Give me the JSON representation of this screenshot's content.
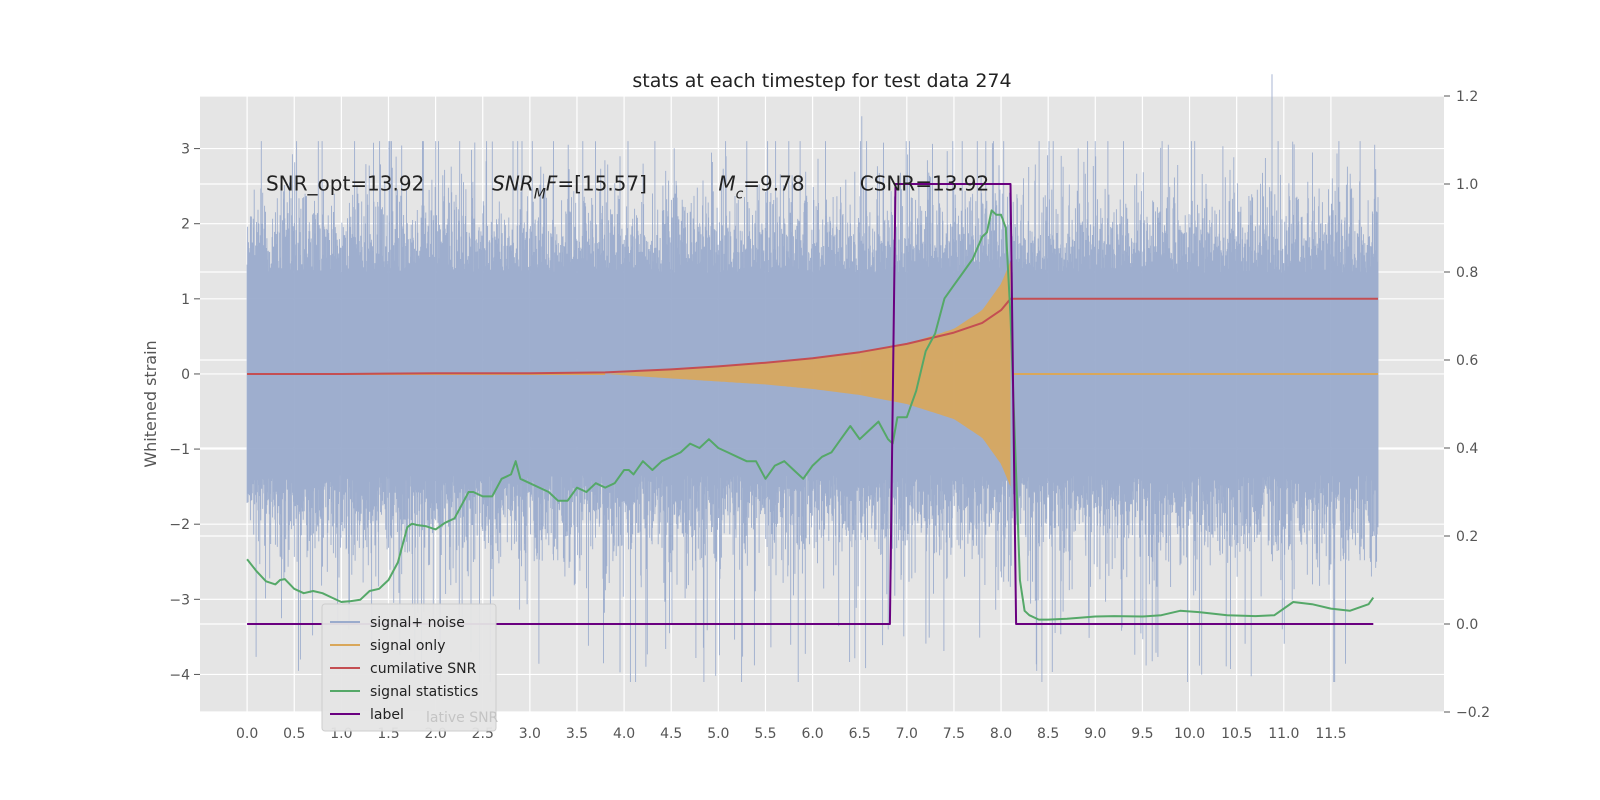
{
  "chart_data": {
    "type": "line",
    "title": "stats at each timestep for test data 274",
    "ylabel": "Whitened strain",
    "xlim": [
      -0.5,
      12.7
    ],
    "ylim": [
      -4.5,
      3.7
    ],
    "y2lim": [
      -0.2,
      1.2
    ],
    "grid": true,
    "x_ticks": [
      "0.0",
      "0.5",
      "1.0",
      "1.5",
      "2.0",
      "2.5",
      "3.0",
      "3.5",
      "4.0",
      "4.5",
      "5.0",
      "5.5",
      "6.0",
      "6.5",
      "7.0",
      "7.5",
      "8.0",
      "8.5",
      "9.0",
      "9.5",
      "10.0",
      "10.5",
      "11.0",
      "11.5"
    ],
    "y_ticks": [
      "3",
      "2",
      "1",
      "0",
      "−1",
      "−2",
      "−3",
      "−4"
    ],
    "y2_ticks": [
      "1.2",
      "1.0",
      "0.8",
      "0.6",
      "0.4",
      "0.2",
      "0.0",
      "−0.2"
    ],
    "annotations": [
      {
        "pre": "SNR_opt=13.92",
        "sub": "",
        "post": "",
        "x": 0.2
      },
      {
        "pre": "SNR",
        "sub": "M",
        "post": "F=[15.57]",
        "x": 2.6
      },
      {
        "pre": "M",
        "sub": "c",
        "post": "=9.78",
        "x": 5.0
      },
      {
        "pre": "CSNR=13.92",
        "sub": "",
        "post": "",
        "x": 6.5
      }
    ],
    "annotation_y": 2.55,
    "series": [
      {
        "name": "signal+ noise",
        "color": "#9aabcc",
        "axis": "left",
        "kind": "noise",
        "x_range": [
          0.0,
          12.0
        ],
        "envelope": {
          "core": 1.35,
          "peak_high": 3.1,
          "peak_low": -4.1
        },
        "notes_visible": "dense noise trace spanning the full time range"
      },
      {
        "name": "signal only",
        "color": "#d9a75a",
        "axis": "left",
        "kind": "chirp",
        "x": [
          3.8,
          4.5,
          5.0,
          5.5,
          6.0,
          6.5,
          7.0,
          7.5,
          7.8,
          8.0,
          8.1
        ],
        "amplitude": [
          0.0,
          0.06,
          0.1,
          0.14,
          0.2,
          0.28,
          0.4,
          0.6,
          0.85,
          1.2,
          1.5
        ],
        "after": 0.0
      },
      {
        "name": "cumilative SNR",
        "color": "#c44e52",
        "axis": "left",
        "x": [
          0.0,
          1.0,
          2.0,
          3.0,
          3.8,
          4.5,
          5.0,
          5.5,
          6.0,
          6.5,
          7.0,
          7.5,
          7.8,
          8.0,
          8.1,
          8.15,
          12.0
        ],
        "y": [
          0.0,
          0.0,
          0.01,
          0.01,
          0.02,
          0.06,
          0.1,
          0.15,
          0.21,
          0.29,
          0.4,
          0.55,
          0.68,
          0.85,
          1.0,
          1.0,
          1.0
        ]
      },
      {
        "name": "signal statistics",
        "color": "#55a868",
        "axis": "right",
        "x": [
          0.0,
          0.1,
          0.2,
          0.3,
          0.35,
          0.4,
          0.5,
          0.6,
          0.7,
          0.8,
          0.9,
          1.0,
          1.1,
          1.2,
          1.3,
          1.4,
          1.5,
          1.6,
          1.65,
          1.7,
          1.75,
          1.8,
          1.9,
          2.0,
          2.1,
          2.2,
          2.3,
          2.35,
          2.4,
          2.5,
          2.6,
          2.7,
          2.8,
          2.85,
          2.9,
          3.0,
          3.1,
          3.2,
          3.3,
          3.4,
          3.5,
          3.6,
          3.7,
          3.8,
          3.9,
          4.0,
          4.05,
          4.1,
          4.2,
          4.3,
          4.4,
          4.5,
          4.6,
          4.7,
          4.8,
          4.9,
          5.0,
          5.1,
          5.2,
          5.3,
          5.4,
          5.5,
          5.6,
          5.7,
          5.8,
          5.9,
          6.0,
          6.1,
          6.2,
          6.3,
          6.4,
          6.5,
          6.6,
          6.7,
          6.8,
          6.85,
          6.9,
          7.0,
          7.05,
          7.1,
          7.2,
          7.3,
          7.4,
          7.5,
          7.6,
          7.7,
          7.8,
          7.85,
          7.9,
          7.95,
          8.0,
          8.05,
          8.1,
          8.15,
          8.2,
          8.25,
          8.3,
          8.4,
          8.5,
          8.7,
          9.0,
          9.2,
          9.5,
          9.7,
          9.9,
          10.1,
          10.4,
          10.7,
          10.9,
          11.1,
          11.3,
          11.5,
          11.7,
          11.9,
          11.95
        ],
        "y": [
          0.147,
          0.12,
          0.097,
          0.09,
          0.1,
          0.102,
          0.08,
          0.07,
          0.075,
          0.07,
          0.06,
          0.05,
          0.052,
          0.055,
          0.075,
          0.08,
          0.1,
          0.14,
          0.18,
          0.22,
          0.228,
          0.225,
          0.222,
          0.215,
          0.23,
          0.24,
          0.28,
          0.3,
          0.3,
          0.29,
          0.29,
          0.33,
          0.34,
          0.37,
          0.33,
          0.32,
          0.31,
          0.3,
          0.28,
          0.28,
          0.31,
          0.3,
          0.32,
          0.31,
          0.32,
          0.35,
          0.35,
          0.34,
          0.37,
          0.35,
          0.37,
          0.38,
          0.39,
          0.41,
          0.4,
          0.42,
          0.4,
          0.39,
          0.38,
          0.37,
          0.37,
          0.33,
          0.36,
          0.37,
          0.35,
          0.33,
          0.36,
          0.38,
          0.39,
          0.42,
          0.45,
          0.42,
          0.44,
          0.46,
          0.42,
          0.41,
          0.47,
          0.47,
          0.5,
          0.53,
          0.62,
          0.66,
          0.74,
          0.77,
          0.8,
          0.83,
          0.88,
          0.89,
          0.94,
          0.93,
          0.93,
          0.9,
          0.7,
          0.4,
          0.1,
          0.03,
          0.02,
          0.01,
          0.01,
          0.012,
          0.017,
          0.018,
          0.017,
          0.02,
          0.03,
          0.027,
          0.02,
          0.018,
          0.02,
          0.05,
          0.045,
          0.035,
          0.03,
          0.045,
          0.06
        ]
      },
      {
        "name": "label",
        "color": "#6a0080",
        "axis": "right",
        "x": [
          0.0,
          6.82,
          6.88,
          8.1,
          8.16,
          11.95
        ],
        "y": [
          0.0,
          0.0,
          1.0,
          1.0,
          0.0,
          0.0
        ]
      }
    ],
    "legend": {
      "placement": "lower-left",
      "entries": [
        "signal+ noise",
        "signal only",
        "cumilative SNR",
        "signal statistics",
        "label"
      ],
      "hidden_behind": "lative SNR"
    }
  },
  "colors": {
    "plot_bg": "#e5e5e5",
    "grid": "#ffffff",
    "page_bg": "#ffffff"
  }
}
